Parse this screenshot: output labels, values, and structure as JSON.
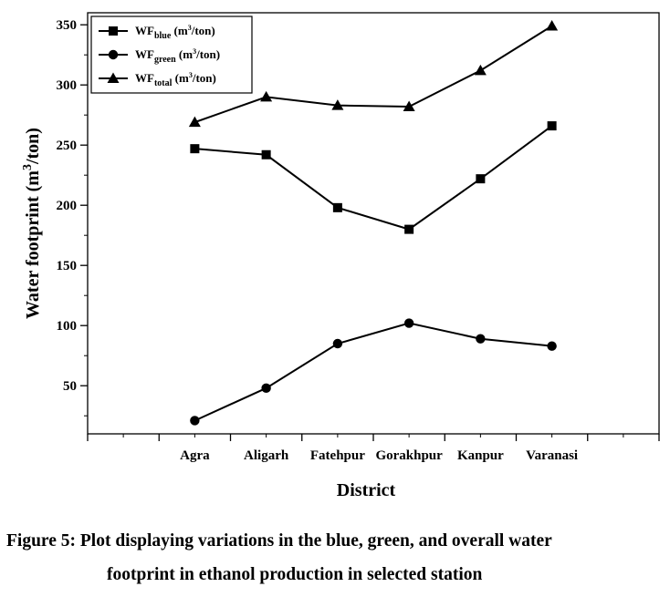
{
  "figure": {
    "caption_line1": "Figure 5: Plot displaying variations in the blue, green, and overall water",
    "caption_line2": "footprint in ethanol production in selected station"
  },
  "chart_data": {
    "type": "line",
    "categories": [
      "Agra",
      "Aligarh",
      "Fatehpur",
      "Gorakhpur",
      "Kanpur",
      "Varanasi"
    ],
    "xlabel": "District",
    "ylabel": "Water footprint (m3/ton)",
    "ylim": [
      10,
      360
    ],
    "yticks": [
      50,
      100,
      150,
      200,
      250,
      300,
      350
    ],
    "grid": false,
    "legend_position": "top-left",
    "series": [
      {
        "name": "WFblue (m3/ton)",
        "name_base": "WF",
        "name_sub": "blue",
        "name_unit_pre": " (m",
        "name_unit_sup": "3",
        "name_unit_post": "/ton)",
        "marker": "square",
        "color": "#000000",
        "values": [
          247,
          242,
          198,
          180,
          222,
          266
        ]
      },
      {
        "name": "WFgreen (m3/ton)",
        "name_base": "WF",
        "name_sub": "green",
        "name_unit_pre": " (m",
        "name_unit_sup": "3",
        "name_unit_post": "/ton)",
        "marker": "circle",
        "color": "#000000",
        "values": [
          21,
          48,
          85,
          102,
          89,
          83
        ]
      },
      {
        "name": "WFtotal (m3/ton)",
        "name_base": "WF",
        "name_sub": "total",
        "name_unit_pre": " (m",
        "name_unit_sup": "3",
        "name_unit_post": "/ton)",
        "marker": "triangle",
        "color": "#000000",
        "values": [
          269,
          290,
          283,
          282,
          312,
          349
        ]
      }
    ]
  }
}
